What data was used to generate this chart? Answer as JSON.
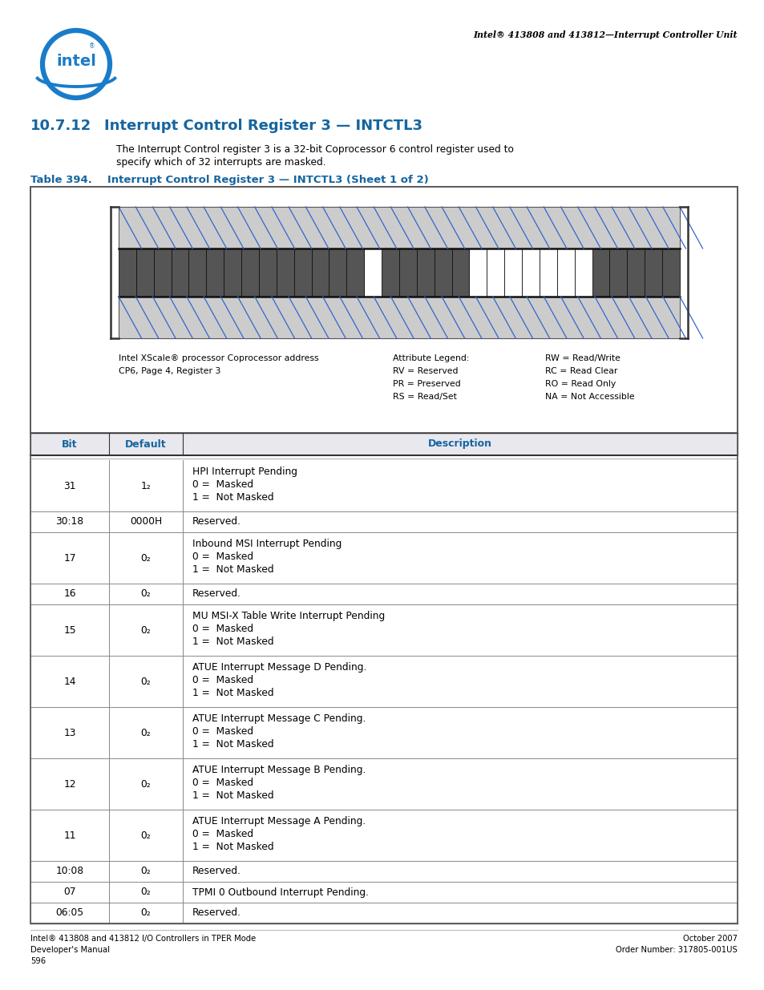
{
  "page_header_right": "Intel® 413808 and 413812—Interrupt Controller Unit",
  "section_number": "10.7.12",
  "section_title": "Interrupt Control Register 3 — INTCTL3",
  "section_title_color": "#1565a0",
  "description": "The Interrupt Control register 3 is a 32-bit Coprocessor 6 control register used to\nspecify which of 32 interrupts are masked.",
  "table_title_prefix": "Table 394.",
  "table_title_body": "   Interrupt Control Register 3 — INTCTL3 (Sheet 1 of 2)",
  "table_title_color": "#1565a0",
  "reg_caption_left1": "Intel XScale® processor Coprocessor address",
  "reg_caption_left2": "CP6, Page 4, Register 3",
  "attr_legend_col1": [
    "Attribute Legend:",
    "RV = Reserved",
    "PR = Preserved",
    "RS = Read/Set"
  ],
  "attr_legend_col2": [
    "RW = Read/Write",
    "RC = Read Clear",
    "RO = Read Only",
    "NA = Not Accessible"
  ],
  "col_headers": [
    "Bit",
    "Default",
    "Description"
  ],
  "col_header_color": "#1565a0",
  "rows": [
    {
      "bit": "31",
      "default": "1₂",
      "desc": [
        "HPI Interrupt Pending",
        "0 =  Masked",
        "1 =  Not Masked"
      ]
    },
    {
      "bit": "30:18",
      "default": "0000H",
      "desc": [
        "Reserved."
      ]
    },
    {
      "bit": "17",
      "default": "0₂",
      "desc": [
        "Inbound MSI Interrupt Pending",
        "0 =  Masked",
        "1 =  Not Masked"
      ]
    },
    {
      "bit": "16",
      "default": "0₂",
      "desc": [
        "Reserved."
      ]
    },
    {
      "bit": "15",
      "default": "0₂",
      "desc": [
        "MU MSI-X Table Write Interrupt Pending",
        "0 =  Masked",
        "1 =  Not Masked"
      ]
    },
    {
      "bit": "14",
      "default": "0₂",
      "desc": [
        "ATUE Interrupt Message D Pending.",
        "0 =  Masked",
        "1 =  Not Masked"
      ]
    },
    {
      "bit": "13",
      "default": "0₂",
      "desc": [
        "ATUE Interrupt Message C Pending.",
        "0 =  Masked",
        "1 =  Not Masked"
      ]
    },
    {
      "bit": "12",
      "default": "0₂",
      "desc": [
        "ATUE Interrupt Message B Pending.",
        "0 =  Masked",
        "1 =  Not Masked"
      ]
    },
    {
      "bit": "11",
      "default": "0₂",
      "desc": [
        "ATUE Interrupt Message A Pending.",
        "0 =  Masked",
        "1 =  Not Masked"
      ]
    },
    {
      "bit": "10:08",
      "default": "0₂",
      "desc": [
        "Reserved."
      ]
    },
    {
      "bit": "07",
      "default": "0₂",
      "desc": [
        "TPMI 0 Outbound Interrupt Pending."
      ]
    },
    {
      "bit": "06:05",
      "default": "0₂",
      "desc": [
        "Reserved."
      ]
    }
  ],
  "footer_left": [
    "Intel® 413808 and 413812 I/O Controllers in TPER Mode",
    "Developer's Manual",
    "596"
  ],
  "footer_right": [
    "October 2007",
    "Order Number: 317805-001US"
  ],
  "bg_color": "#ffffff",
  "dark_bits": [
    18,
    19,
    20,
    21,
    22,
    23,
    24,
    25,
    26,
    27,
    28,
    29,
    30,
    31,
    12,
    13,
    14,
    15,
    16,
    0,
    1,
    2,
    3,
    4
  ],
  "logo_color": "#1a7cc9"
}
